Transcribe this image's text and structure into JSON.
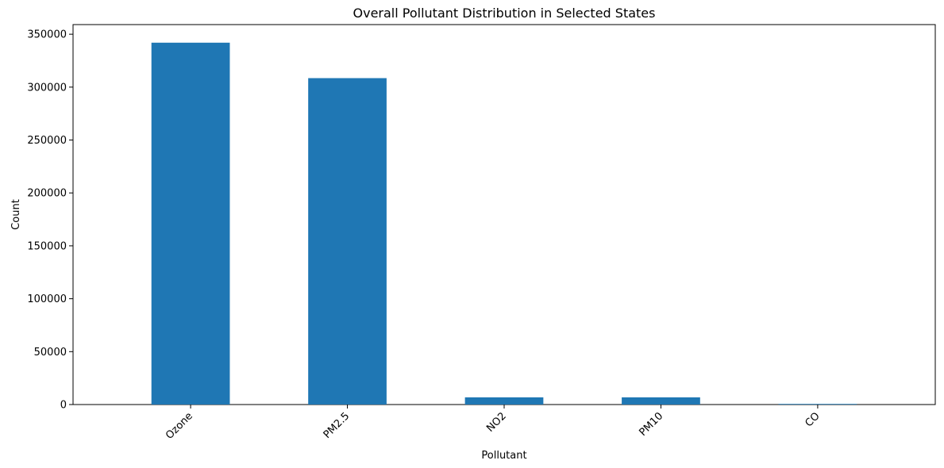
{
  "chart_data": {
    "type": "bar",
    "title": "Overall Pollutant Distribution in Selected States",
    "xlabel": "Pollutant",
    "ylabel": "Count",
    "categories": [
      "Ozone",
      "PM2.5",
      "NO2",
      "PM10",
      "CO"
    ],
    "values": [
      342000,
      308500,
      6800,
      6800,
      600
    ],
    "ylim": [
      0,
      359100
    ],
    "yticks": [
      0,
      50000,
      100000,
      150000,
      200000,
      250000,
      300000,
      350000
    ],
    "ytick_labels": [
      "0",
      "50000",
      "100000",
      "150000",
      "200000",
      "250000",
      "300000",
      "350000"
    ],
    "xtick_rotation": 45,
    "grid": false,
    "legend": "none",
    "bar_color": "#1f77b4"
  }
}
